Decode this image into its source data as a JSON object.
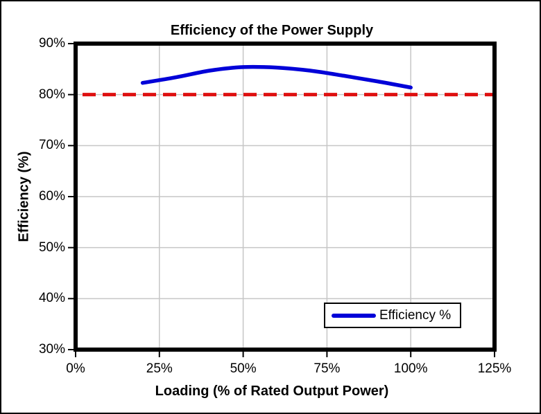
{
  "chart_data": {
    "type": "line",
    "title": "Efficiency of the Power Supply",
    "xlabel": "Loading (% of Rated Output Power)",
    "ylabel": "Efficiency (%)",
    "xlim": [
      0,
      125
    ],
    "ylim": [
      30,
      90
    ],
    "x_ticks": [
      {
        "value": 0,
        "label": "0%"
      },
      {
        "value": 25,
        "label": "25%"
      },
      {
        "value": 50,
        "label": "50%"
      },
      {
        "value": 75,
        "label": "75%"
      },
      {
        "value": 100,
        "label": "100%"
      },
      {
        "value": 125,
        "label": "125%"
      }
    ],
    "y_ticks": [
      {
        "value": 30,
        "label": "30%"
      },
      {
        "value": 40,
        "label": "40%"
      },
      {
        "value": 50,
        "label": "50%"
      },
      {
        "value": 60,
        "label": "60%"
      },
      {
        "value": 70,
        "label": "70%"
      },
      {
        "value": 80,
        "label": "80%"
      },
      {
        "value": 90,
        "label": "90%"
      }
    ],
    "grid": true,
    "grid_color": "#c6c6c6",
    "axis_frame_color": "#000000",
    "background_color": "#ffffff",
    "legend": {
      "position": "inside-bottom-right",
      "entries": [
        "Efficiency %"
      ]
    },
    "series": [
      {
        "name": "Efficiency %",
        "color": "#0000d8",
        "style": "solid",
        "points": [
          {
            "x": 20,
            "y": 82.3
          },
          {
            "x": 30,
            "y": 83.4
          },
          {
            "x": 40,
            "y": 84.7
          },
          {
            "x": 50,
            "y": 85.4
          },
          {
            "x": 60,
            "y": 85.3
          },
          {
            "x": 70,
            "y": 84.7
          },
          {
            "x": 80,
            "y": 83.7
          },
          {
            "x": 90,
            "y": 82.6
          },
          {
            "x": 100,
            "y": 81.4
          }
        ]
      }
    ],
    "reference_line": {
      "y": 80,
      "color": "#de1010",
      "style": "dashed"
    }
  }
}
